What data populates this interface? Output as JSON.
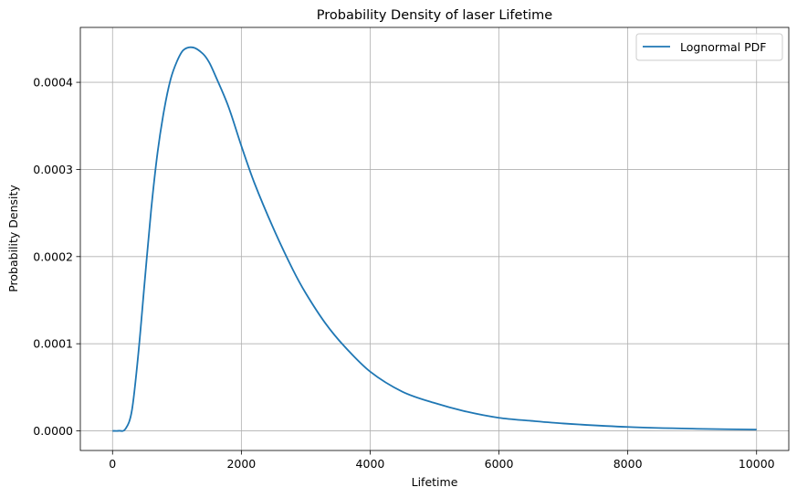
{
  "chart_data": {
    "type": "line",
    "title": "Probability Density of laser Lifetime",
    "xlabel": "Lifetime",
    "ylabel": "Probability Density",
    "xlim": [
      -500,
      10500
    ],
    "ylim": [
      -2.25e-05,
      0.000463
    ],
    "xticks": [
      0,
      2000,
      4000,
      6000,
      8000,
      10000
    ],
    "xtick_labels": [
      "0",
      "2000",
      "4000",
      "6000",
      "8000",
      "10000"
    ],
    "yticks": [
      0,
      0.0001,
      0.0002,
      0.0003,
      0.0004
    ],
    "ytick_labels": [
      "0.0000",
      "0.0001",
      "0.0002",
      "0.0003",
      "0.0004"
    ],
    "grid": true,
    "legend_position": "top-right",
    "series": [
      {
        "name": "Lognormal PDF",
        "color": "#1f77b4",
        "x": [
          0,
          100,
          200,
          300,
          400,
          500,
          600,
          700,
          800,
          900,
          1000,
          1100,
          1250,
          1400,
          1500,
          1600,
          1800,
          2000,
          2200,
          2500,
          2800,
          3000,
          3300,
          3600,
          4000,
          4500,
          5000,
          5500,
          6000,
          6500,
          7000,
          8000,
          9000,
          10000
        ],
        "y": [
          0,
          1e-07,
          2.2e-06,
          2.33e-05,
          8.83e-05,
          0.000172,
          0.000254,
          0.00032,
          0.000368,
          0.000403,
          0.000424,
          0.000437,
          0.00044,
          0.000433,
          0.000423,
          0.000407,
          0.000372,
          0.000327,
          0.000285,
          0.000232,
          0.000185,
          0.000158,
          0.000124,
          9.7e-05,
          6.8e-05,
          4.5e-05,
          3.2e-05,
          2.2e-05,
          1.5e-05,
          1.15e-05,
          8.5e-06,
          4.5e-06,
          2.5e-06,
          1.5e-06
        ]
      }
    ]
  }
}
